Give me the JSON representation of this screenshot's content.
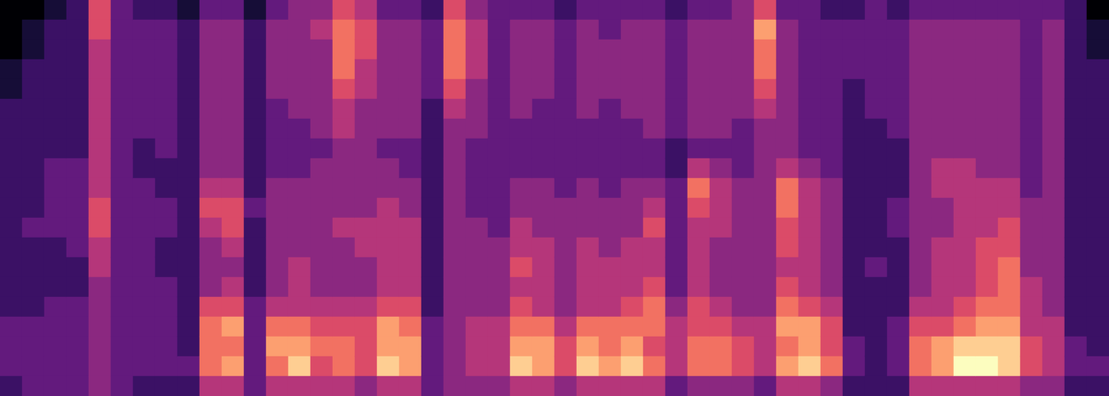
{
  "chart_data": {
    "type": "heatmap",
    "color": "magma",
    "tick_labels": false,
    "zlim": [
      0,
      10
    ],
    "cells": [
      [
        0,
        0,
        0,
        1,
        1,
        2,
        2,
        2,
        2,
        2,
        2,
        2,
        2,
        2,
        2,
        2,
        3,
        3,
        3,
        2
      ],
      [
        0,
        1,
        1,
        2,
        2,
        2,
        2,
        2,
        2,
        2,
        2,
        3,
        2,
        2,
        2,
        2,
        3,
        3,
        3,
        3
      ],
      [
        1,
        2,
        2,
        2,
        2,
        2,
        2,
        2,
        3,
        3,
        3,
        3,
        2,
        2,
        2,
        3,
        3,
        3,
        3,
        3
      ],
      [
        2,
        2,
        2,
        2,
        2,
        2,
        2,
        2,
        3,
        3,
        3,
        3,
        3,
        2,
        2,
        3,
        3,
        3,
        3,
        3
      ],
      [
        6,
        6,
        5,
        5,
        5,
        5,
        5,
        5,
        5,
        5,
        6,
        6,
        5,
        5,
        4,
        4,
        4,
        4,
        4,
        4
      ],
      [
        3,
        3,
        3,
        3,
        3,
        3,
        3,
        3,
        3,
        3,
        3,
        3,
        3,
        3,
        3,
        3,
        3,
        3,
        3,
        3
      ],
      [
        2,
        3,
        3,
        3,
        3,
        3,
        3,
        2,
        2,
        3,
        3,
        3,
        3,
        3,
        3,
        3,
        3,
        3,
        3,
        2
      ],
      [
        2,
        3,
        3,
        3,
        3,
        3,
        3,
        3,
        2,
        2,
        3,
        3,
        2,
        2,
        3,
        3,
        3,
        3,
        3,
        2
      ],
      [
        1,
        2,
        2,
        2,
        2,
        2,
        2,
        2,
        2,
        2,
        2,
        2,
        2,
        2,
        2,
        2,
        2,
        2,
        3,
        2
      ],
      [
        3,
        4,
        4,
        4,
        4,
        4,
        4,
        4,
        4,
        5,
        6,
        5,
        4,
        4,
        4,
        6,
        7,
        7,
        7,
        5
      ],
      [
        3,
        4,
        4,
        4,
        4,
        4,
        4,
        4,
        4,
        5,
        6,
        6,
        5,
        4,
        5,
        6,
        8,
        7,
        8,
        5
      ],
      [
        1,
        2,
        2,
        2,
        2,
        2,
        2,
        2,
        2,
        2,
        3,
        2,
        2,
        2,
        2,
        3,
        3,
        3,
        3,
        3
      ],
      [
        3,
        4,
        4,
        4,
        4,
        3,
        3,
        3,
        3,
        4,
        4,
        4,
        4,
        4,
        4,
        5,
        7,
        8,
        7,
        5
      ],
      [
        4,
        4,
        4,
        4,
        4,
        4,
        3,
        3,
        3,
        4,
        4,
        4,
        4,
        5,
        5,
        5,
        7,
        8,
        9,
        5
      ],
      [
        4,
        5,
        4,
        4,
        4,
        4,
        4,
        3,
        4,
        4,
        4,
        4,
        4,
        4,
        4,
        5,
        6,
        7,
        6,
        5
      ],
      [
        6,
        7,
        7,
        7,
        6,
        5,
        5,
        4,
        4,
        4,
        4,
        5,
        4,
        4,
        4,
        5,
        6,
        7,
        7,
        5
      ],
      [
        5,
        6,
        6,
        5,
        5,
        4,
        4,
        4,
        4,
        4,
        4,
        5,
        5,
        4,
        4,
        5,
        6,
        6,
        6,
        4
      ],
      [
        3,
        4,
        4,
        4,
        4,
        4,
        4,
        3,
        4,
        4,
        5,
        5,
        5,
        5,
        5,
        6,
        8,
        8,
        9,
        5
      ],
      [
        3,
        4,
        4,
        4,
        4,
        4,
        4,
        3,
        3,
        4,
        4,
        5,
        5,
        5,
        5,
        6,
        7,
        8,
        8,
        5
      ],
      [
        2,
        3,
        3,
        3,
        3,
        2,
        2,
        2,
        2,
        2,
        2,
        2,
        2,
        2,
        2,
        2,
        3,
        3,
        3,
        3
      ],
      [
        6,
        7,
        7,
        7,
        6,
        5,
        4,
        4,
        4,
        4,
        4,
        4,
        4,
        4,
        4,
        4,
        4,
        4,
        4,
        4
      ],
      [
        4,
        5,
        5,
        5,
        4,
        4,
        4,
        3,
        3,
        3,
        3,
        4,
        4,
        4,
        4,
        4,
        5,
        5,
        5,
        4
      ],
      [
        3,
        3,
        3,
        3,
        3,
        3,
        3,
        3,
        3,
        3,
        3,
        3,
        4,
        4,
        4,
        4,
        5,
        5,
        5,
        4
      ],
      [
        3,
        4,
        4,
        4,
        4,
        4,
        3,
        3,
        3,
        4,
        4,
        5,
        5,
        6,
        5,
        6,
        7,
        8,
        9,
        5
      ],
      [
        3,
        4,
        4,
        4,
        4,
        3,
        3,
        3,
        3,
        4,
        4,
        4,
        5,
        5,
        5,
        5,
        7,
        8,
        8,
        5
      ],
      [
        2,
        3,
        3,
        3,
        3,
        3,
        3,
        3,
        3,
        3,
        4,
        4,
        4,
        4,
        4,
        4,
        5,
        6,
        6,
        4
      ],
      [
        3,
        4,
        4,
        4,
        4,
        4,
        3,
        3,
        3,
        4,
        4,
        4,
        5,
        5,
        5,
        5,
        7,
        8,
        9,
        5
      ],
      [
        3,
        3,
        4,
        4,
        4,
        3,
        3,
        3,
        3,
        3,
        4,
        4,
        4,
        5,
        5,
        5,
        7,
        7,
        8,
        5
      ],
      [
        3,
        4,
        4,
        4,
        4,
        4,
        3,
        3,
        3,
        4,
        4,
        4,
        5,
        5,
        5,
        6,
        7,
        8,
        9,
        5
      ],
      [
        3,
        4,
        4,
        4,
        4,
        4,
        4,
        3,
        3,
        4,
        5,
        6,
        5,
        5,
        6,
        7,
        7,
        6,
        7,
        5
      ],
      [
        2,
        3,
        3,
        3,
        3,
        3,
        3,
        2,
        2,
        3,
        3,
        3,
        3,
        3,
        3,
        4,
        5,
        5,
        5,
        3
      ],
      [
        3,
        4,
        4,
        4,
        4,
        4,
        4,
        3,
        5,
        7,
        6,
        5,
        5,
        5,
        5,
        6,
        6,
        7,
        7,
        4
      ],
      [
        3,
        4,
        4,
        4,
        4,
        4,
        4,
        3,
        4,
        5,
        5,
        5,
        4,
        4,
        4,
        5,
        6,
        7,
        7,
        4
      ],
      [
        4,
        4,
        4,
        4,
        4,
        4,
        3,
        3,
        3,
        4,
        4,
        4,
        4,
        4,
        4,
        4,
        5,
        6,
        6,
        4
      ],
      [
        6,
        8,
        7,
        7,
        6,
        5,
        4,
        4,
        4,
        4,
        4,
        4,
        4,
        4,
        4,
        4,
        5,
        5,
        5,
        3
      ],
      [
        3,
        4,
        4,
        4,
        4,
        4,
        4,
        4,
        5,
        7,
        7,
        6,
        6,
        5,
        6,
        7,
        8,
        7,
        8,
        5
      ],
      [
        3,
        3,
        3,
        3,
        3,
        3,
        3,
        3,
        4,
        5,
        5,
        5,
        5,
        5,
        5,
        6,
        8,
        8,
        9,
        5
      ],
      [
        2,
        3,
        3,
        3,
        3,
        3,
        3,
        3,
        3,
        4,
        4,
        4,
        4,
        4,
        4,
        5,
        6,
        6,
        7,
        4
      ],
      [
        2,
        3,
        3,
        3,
        2,
        2,
        2,
        2,
        2,
        2,
        2,
        2,
        2,
        2,
        2,
        2,
        2,
        3,
        3,
        2
      ],
      [
        3,
        3,
        3,
        3,
        3,
        3,
        2,
        2,
        2,
        2,
        2,
        2,
        2,
        3,
        2,
        2,
        2,
        2,
        2,
        2
      ],
      [
        2,
        3,
        3,
        3,
        3,
        3,
        3,
        2,
        2,
        2,
        3,
        3,
        2,
        2,
        2,
        2,
        3,
        3,
        3,
        2
      ],
      [
        3,
        4,
        4,
        4,
        4,
        4,
        4,
        4,
        4,
        4,
        4,
        4,
        4,
        4,
        4,
        5,
        6,
        7,
        7,
        5
      ],
      [
        3,
        4,
        4,
        4,
        4,
        4,
        4,
        4,
        5,
        5,
        4,
        4,
        5,
        5,
        5,
        5,
        6,
        8,
        8,
        5
      ],
      [
        3,
        4,
        4,
        4,
        4,
        4,
        4,
        4,
        5,
        5,
        5,
        5,
        5,
        5,
        5,
        6,
        7,
        9,
        10,
        5
      ],
      [
        3,
        4,
        4,
        4,
        4,
        4,
        4,
        4,
        4,
        5,
        5,
        5,
        6,
        6,
        6,
        7,
        8,
        9,
        10,
        5
      ],
      [
        3,
        4,
        4,
        4,
        4,
        4,
        4,
        4,
        4,
        5,
        5,
        6,
        6,
        7,
        7,
        7,
        8,
        9,
        9,
        5
      ],
      [
        3,
        3,
        3,
        3,
        3,
        3,
        3,
        3,
        3,
        3,
        4,
        4,
        4,
        4,
        5,
        5,
        5,
        6,
        6,
        4
      ],
      [
        3,
        4,
        4,
        4,
        4,
        4,
        4,
        4,
        4,
        4,
        4,
        4,
        4,
        4,
        4,
        4,
        5,
        5,
        5,
        4
      ],
      [
        2,
        2,
        2,
        2,
        2,
        2,
        2,
        2,
        2,
        2,
        2,
        2,
        2,
        2,
        2,
        2,
        2,
        3,
        3,
        2
      ],
      [
        0,
        1,
        1,
        2,
        2,
        2,
        2,
        2,
        2,
        2,
        2,
        2,
        2,
        2,
        2,
        2,
        2,
        2,
        3,
        2
      ]
    ]
  }
}
